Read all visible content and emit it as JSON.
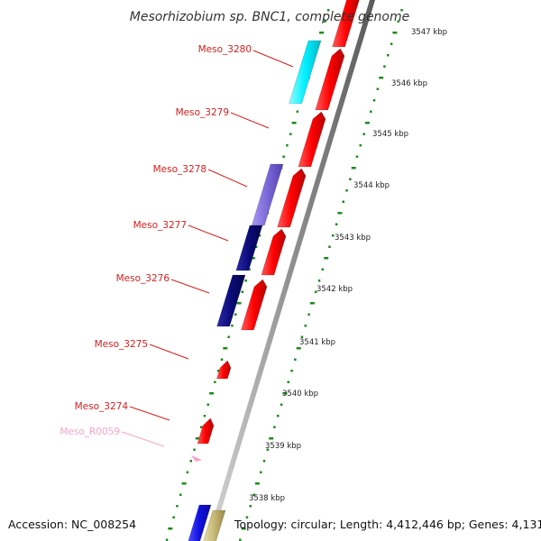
{
  "title": "Mesorhizobium sp. BNC1, complete genome",
  "accession": "Accession: NC_008254",
  "topology": "Topology: circular; Length: 4,412,446 bp; Genes: 4,131",
  "ticks": [
    "3547 kbp",
    "3546 kbp",
    "3545 kbp",
    "3544 kbp",
    "3543 kbp",
    "3542 kbp",
    "3541 kbp",
    "3540 kbp",
    "3539 kbp",
    "3538 kbp"
  ],
  "labels": [
    {
      "text": "Meso_3280",
      "color": "#d42020"
    },
    {
      "text": "Meso_3279",
      "color": "#d42020"
    },
    {
      "text": "Meso_3278",
      "color": "#d42020"
    },
    {
      "text": "Meso_3277",
      "color": "#d42020"
    },
    {
      "text": "Meso_3276",
      "color": "#d42020"
    },
    {
      "text": "Meso_3275",
      "color": "#d42020"
    },
    {
      "text": "Meso_3274",
      "color": "#d42020"
    },
    {
      "text": "Meso_R0059",
      "color": "#f4a6c4"
    }
  ],
  "colors": {
    "forward_cds": "#ff0000",
    "cyan_feature": "#00f0ff",
    "purple_feature": "#7b68d8",
    "navy_feature": "#0a0a78",
    "blue_feature": "#1010e0",
    "khaki_feature": "#c8b878",
    "rna_feature": "#f8a0c8",
    "backbone": "#909090",
    "dots": "#1e8a1e"
  }
}
